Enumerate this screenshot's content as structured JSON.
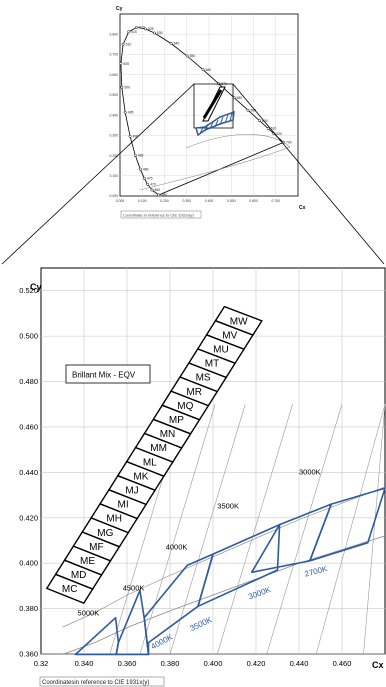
{
  "chart_data": [
    {
      "id": "overview",
      "type": "line",
      "title": "",
      "xlabel": "Cx",
      "ylabel": "Cy",
      "xlim": [
        0.0,
        0.8
      ],
      "ylim": [
        0.0,
        0.9
      ],
      "grid": true,
      "x_ticks": [
        "0.000",
        "0.100",
        "0.200",
        "0.300",
        "0.400",
        "0.500",
        "0.600",
        "0.700"
      ],
      "y_ticks": [
        "0.000",
        "0.100",
        "0.200",
        "0.300",
        "0.400",
        "0.500",
        "0.600",
        "0.700",
        "0.800"
      ],
      "footnote": "Coordinate in reference to CIE 1931x(y)",
      "series": [
        {
          "wavelength_labels": [
            "380",
            "460",
            "470",
            "475",
            "480",
            "485",
            "490",
            "495",
            "500",
            "505",
            "510",
            "515",
            "520",
            "525",
            "530",
            "540",
            "550",
            "560",
            "570",
            "580",
            "590",
            "600",
            "610",
            "620",
            "700"
          ],
          "x": [
            0.1741,
            0.144,
            0.1241,
            0.1096,
            0.0913,
            0.0687,
            0.0454,
            0.0235,
            0.0082,
            0.0039,
            0.0139,
            0.0389,
            0.0743,
            0.1142,
            0.1547,
            0.2296,
            0.3016,
            0.3731,
            0.4441,
            0.5125,
            0.5752,
            0.627,
            0.6658,
            0.6915,
            0.7347
          ],
          "y": [
            0.005,
            0.0297,
            0.0578,
            0.0868,
            0.1327,
            0.2007,
            0.295,
            0.4127,
            0.5384,
            0.6548,
            0.7502,
            0.812,
            0.8338,
            0.8262,
            0.8059,
            0.7543,
            0.6923,
            0.6245,
            0.5547,
            0.4866,
            0.4242,
            0.3725,
            0.334,
            0.3083,
            0.2653
          ]
        }
      ]
    },
    {
      "id": "detail",
      "type": "line",
      "title": "",
      "xlabel": "Cx",
      "ylabel": "Cy",
      "xlim": [
        0.32,
        0.48
      ],
      "ylim": [
        0.36,
        0.53
      ],
      "grid": true,
      "x_ticks": [
        "0.32",
        "0.340",
        "0.360",
        "0.380",
        "0.400",
        "0.420",
        "0.440",
        "0.460"
      ],
      "y_ticks": [
        "0.360",
        "0.380",
        "0.400",
        "0.420",
        "0.440",
        "0.460",
        "0.480",
        "0.500",
        "0.520"
      ],
      "legend_label": "Brillant Mix - EQV",
      "footnote": "Coordinatesin reference to CIE 1931x(y)",
      "bin_labels": [
        "MC",
        "MD",
        "ME",
        "MF",
        "MG",
        "MH",
        "MI",
        "MJ",
        "MK",
        "ML",
        "MM",
        "MN",
        "MP",
        "MQ",
        "MR",
        "MS",
        "MT",
        "MU",
        "MV",
        "MW"
      ],
      "bin_corners": {
        "bottom_left": [
          0.3227,
          0.3889
        ],
        "bottom_right": [
          0.3399,
          0.3824
        ],
        "top_left": [
          0.4053,
          0.513
        ],
        "top_right": [
          0.4227,
          0.5067
        ]
      },
      "cct_labels_upper": [
        "5000K",
        "4500K",
        "4000K",
        "3500K",
        "3000K"
      ],
      "cct_labels_lower": [
        "4000K",
        "3500K",
        "3000K",
        "2700K"
      ],
      "quadrangles": [
        [
          [
            0.336,
            0.3598
          ],
          [
            0.3547,
            0.376
          ],
          [
            0.356,
            0.365
          ],
          [
            0.355,
            0.3598
          ]
        ],
        [
          [
            0.355,
            0.3598
          ],
          [
            0.356,
            0.365
          ],
          [
            0.366,
            0.388
          ],
          [
            0.368,
            0.376
          ],
          [
            0.37,
            0.3598
          ]
        ],
        [
          [
            0.37,
            0.3598
          ],
          [
            0.368,
            0.376
          ],
          [
            0.388,
            0.399
          ],
          [
            0.4,
            0.404
          ],
          [
            0.393,
            0.381
          ],
          [
            0.37,
            0.365
          ]
        ],
        [
          [
            0.393,
            0.381
          ],
          [
            0.4,
            0.404
          ],
          [
            0.431,
            0.417
          ],
          [
            0.43,
            0.397
          ],
          [
            0.393,
            0.381
          ]
        ],
        [
          [
            0.418,
            0.396
          ],
          [
            0.431,
            0.417
          ],
          [
            0.455,
            0.426
          ],
          [
            0.445,
            0.401
          ]
        ],
        [
          [
            0.445,
            0.401
          ],
          [
            0.455,
            0.426
          ],
          [
            0.48,
            0.433
          ],
          [
            0.472,
            0.409
          ]
        ]
      ],
      "isotherms_cx_at_bottom": [
        0.352,
        0.366,
        0.38,
        0.402,
        0.425,
        0.448,
        0.47
      ],
      "blackbody_locus": {
        "x": [
          0.33,
          0.345,
          0.361,
          0.38,
          0.4,
          0.42,
          0.44,
          0.46,
          0.48
        ],
        "y": [
          0.3598,
          0.365,
          0.372,
          0.379,
          0.386,
          0.393,
          0.4,
          0.406,
          0.412
        ]
      }
    }
  ]
}
